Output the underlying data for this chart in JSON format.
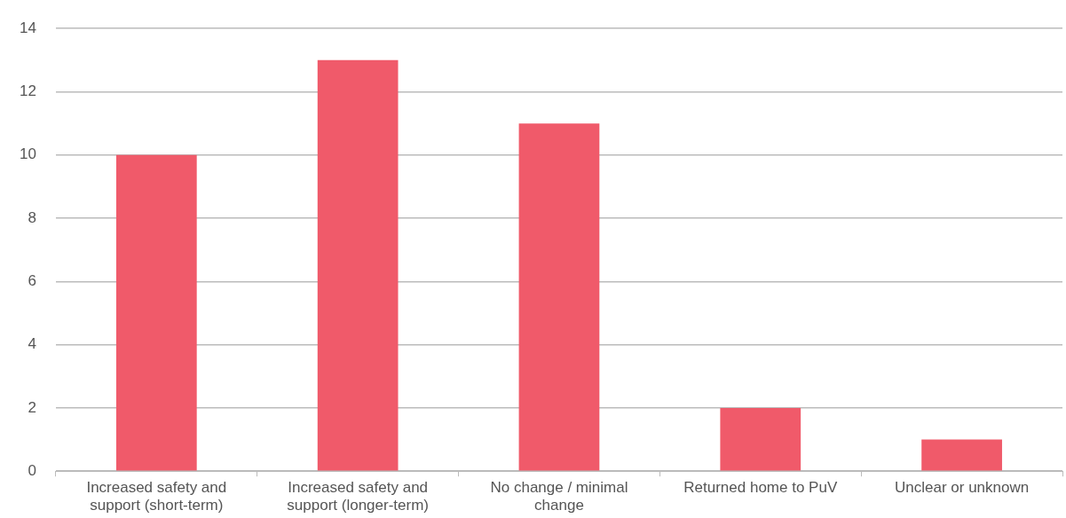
{
  "chart_data": {
    "type": "bar",
    "categories": [
      "Increased safety and support (short-term)",
      "Increased safety and support (longer-term)",
      "No change / minimal change",
      "Returned home to PuV",
      "Unclear or unknown"
    ],
    "values": [
      10,
      13,
      11,
      2,
      1
    ],
    "color": "#f05a6a",
    "ylim": [
      0,
      14
    ],
    "yticks": [
      0,
      2,
      4,
      6,
      8,
      10,
      12,
      14
    ],
    "grid": "y"
  }
}
